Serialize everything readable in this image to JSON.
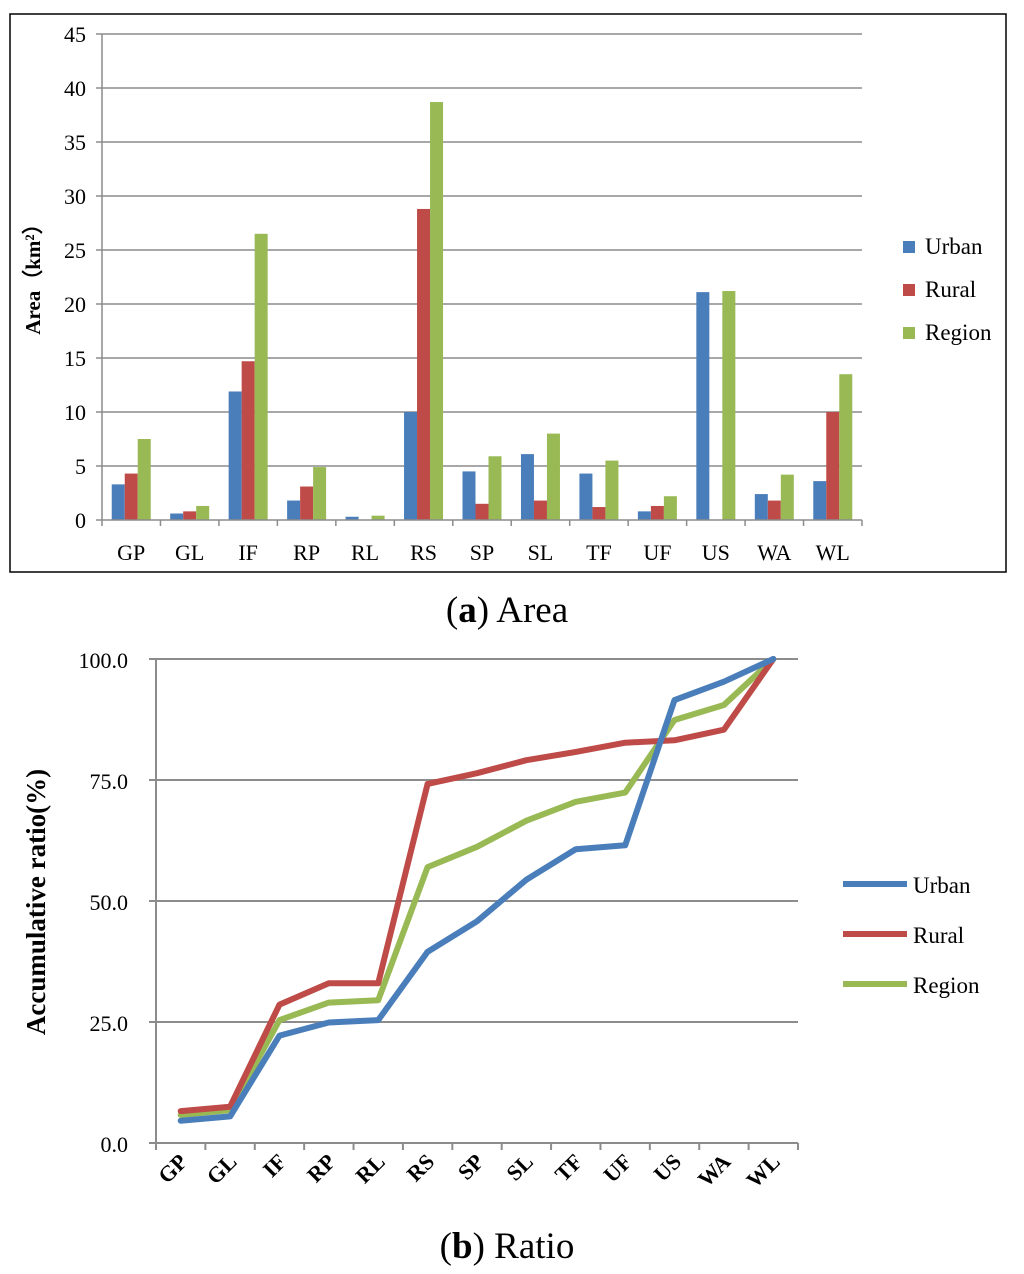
{
  "colors": {
    "Urban": "#4a7ebb",
    "Rural": "#be4b48",
    "Region": "#98b954"
  },
  "chart_data": [
    {
      "type": "bar",
      "caption_bold": "a",
      "caption_rest": " Area",
      "ylabel": "Area（km²）",
      "ylim": [
        0,
        45
      ],
      "yticks": [
        0,
        5,
        10,
        15,
        20,
        25,
        30,
        35,
        40,
        45
      ],
      "categories": [
        "GP",
        "GL",
        "IF",
        "RP",
        "RL",
        "RS",
        "SP",
        "SL",
        "TF",
        "UF",
        "US",
        "WA",
        "WL"
      ],
      "series": [
        {
          "name": "Urban",
          "values": [
            3.3,
            0.6,
            11.9,
            1.8,
            0.3,
            10.0,
            4.5,
            6.1,
            4.3,
            0.8,
            21.1,
            2.4,
            3.6
          ]
        },
        {
          "name": "Rural",
          "values": [
            4.3,
            0.8,
            14.7,
            3.1,
            0.0,
            28.8,
            1.5,
            1.8,
            1.2,
            1.3,
            0.0,
            1.8,
            10.0
          ]
        },
        {
          "name": "Region",
          "values": [
            7.5,
            1.3,
            26.5,
            4.9,
            0.4,
            38.7,
            5.9,
            8.0,
            5.5,
            2.2,
            21.2,
            4.2,
            13.5
          ]
        }
      ],
      "legend": "right"
    },
    {
      "type": "line",
      "caption_bold": "b",
      "caption_rest": " Ratio",
      "ylabel": "Accumulative ratio(%)",
      "ylim": [
        0,
        100
      ],
      "yticks": [
        "0.0",
        "25.0",
        "50.0",
        "75.0",
        "100.0"
      ],
      "categories": [
        "GP",
        "GL",
        "IF",
        "RP",
        "RL",
        "RS",
        "SP",
        "SL",
        "TF",
        "UF",
        "US",
        "WA",
        "WL"
      ],
      "series": [
        {
          "name": "Urban",
          "values": [
            4.6,
            5.5,
            22.2,
            24.9,
            25.4,
            39.5,
            45.8,
            54.4,
            60.7,
            61.5,
            91.5,
            95.3,
            100.0
          ]
        },
        {
          "name": "Rural",
          "values": [
            6.6,
            7.5,
            28.6,
            33.0,
            33.0,
            74.2,
            76.4,
            79.1,
            80.8,
            82.7,
            83.2,
            85.4,
            100.0
          ]
        },
        {
          "name": "Region",
          "values": [
            5.8,
            6.8,
            25.4,
            29.0,
            29.5,
            57.0,
            61.2,
            66.6,
            70.5,
            72.4,
            87.4,
            90.5,
            100.0
          ]
        }
      ],
      "legend": "right"
    }
  ]
}
